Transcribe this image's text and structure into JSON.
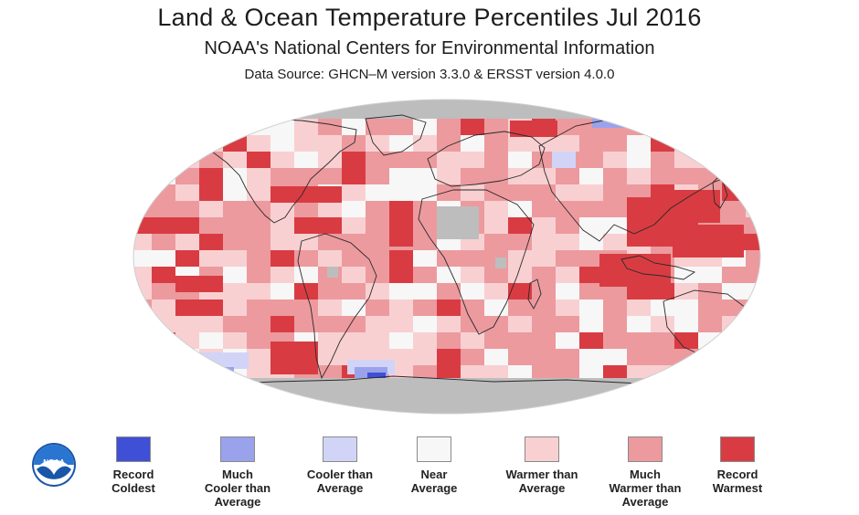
{
  "header": {
    "title": "Land & Ocean Temperature Percentiles Jul 2016",
    "subtitle": "NOAA's National Centers for Environmental Information",
    "source": "Data Source: GHCN–M version 3.3.0 & ERSST version 4.0.0"
  },
  "logo": {
    "text": "NOAA",
    "icon": "noaa-logo-icon"
  },
  "colors": {
    "record_coldest": "#3f4fd6",
    "much_cooler": "#9aa2ec",
    "cooler": "#d2d4f7",
    "near_average": "#f7f7f7",
    "warmer": "#f8d0d2",
    "much_warmer": "#ec9a9e",
    "record_warmest": "#d83c42",
    "no_data": "#bdbdbd"
  },
  "legend": [
    {
      "key": "record_coldest",
      "label": "Record\nColdest"
    },
    {
      "key": "much_cooler",
      "label": "Much\nCooler than\nAverage"
    },
    {
      "key": "cooler",
      "label": "Cooler than\nAverage"
    },
    {
      "key": "near_average",
      "label": "Near\nAverage"
    },
    {
      "key": "warmer",
      "label": "Warmer than\nAverage"
    },
    {
      "key": "much_warmer",
      "label": "Much\nWarmer than\nAverage"
    },
    {
      "key": "record_warmest",
      "label": "Record\nWarmest"
    }
  ]
}
